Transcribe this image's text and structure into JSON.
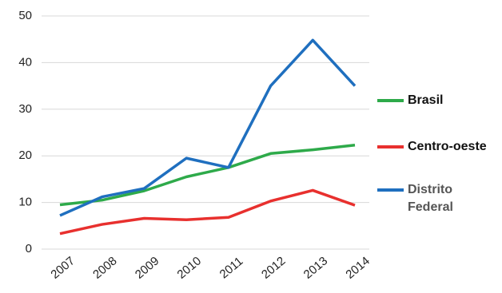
{
  "chart_data": {
    "type": "line",
    "categories": [
      "2007",
      "2008",
      "2009",
      "2010",
      "2011",
      "2012",
      "2013",
      "2014"
    ],
    "series": [
      {
        "name": "Brasil",
        "color": "#2eaa4a",
        "values": [
          9.5,
          10.5,
          12.5,
          15.5,
          17.5,
          20.5,
          21.3,
          22.3
        ]
      },
      {
        "name": "Centro-oeste",
        "color": "#e8302e",
        "values": [
          3.3,
          5.3,
          6.6,
          6.3,
          6.8,
          10.3,
          12.6,
          9.4
        ]
      },
      {
        "name": "Distrito Federal",
        "color": "#1f6fbf",
        "values": [
          7.2,
          11.2,
          13,
          19.5,
          17.5,
          35,
          44.8,
          35
        ]
      }
    ],
    "ylim": [
      0,
      50
    ],
    "yticks": [
      0,
      10,
      20,
      30,
      40,
      50
    ],
    "grid": true,
    "legend": "right"
  }
}
